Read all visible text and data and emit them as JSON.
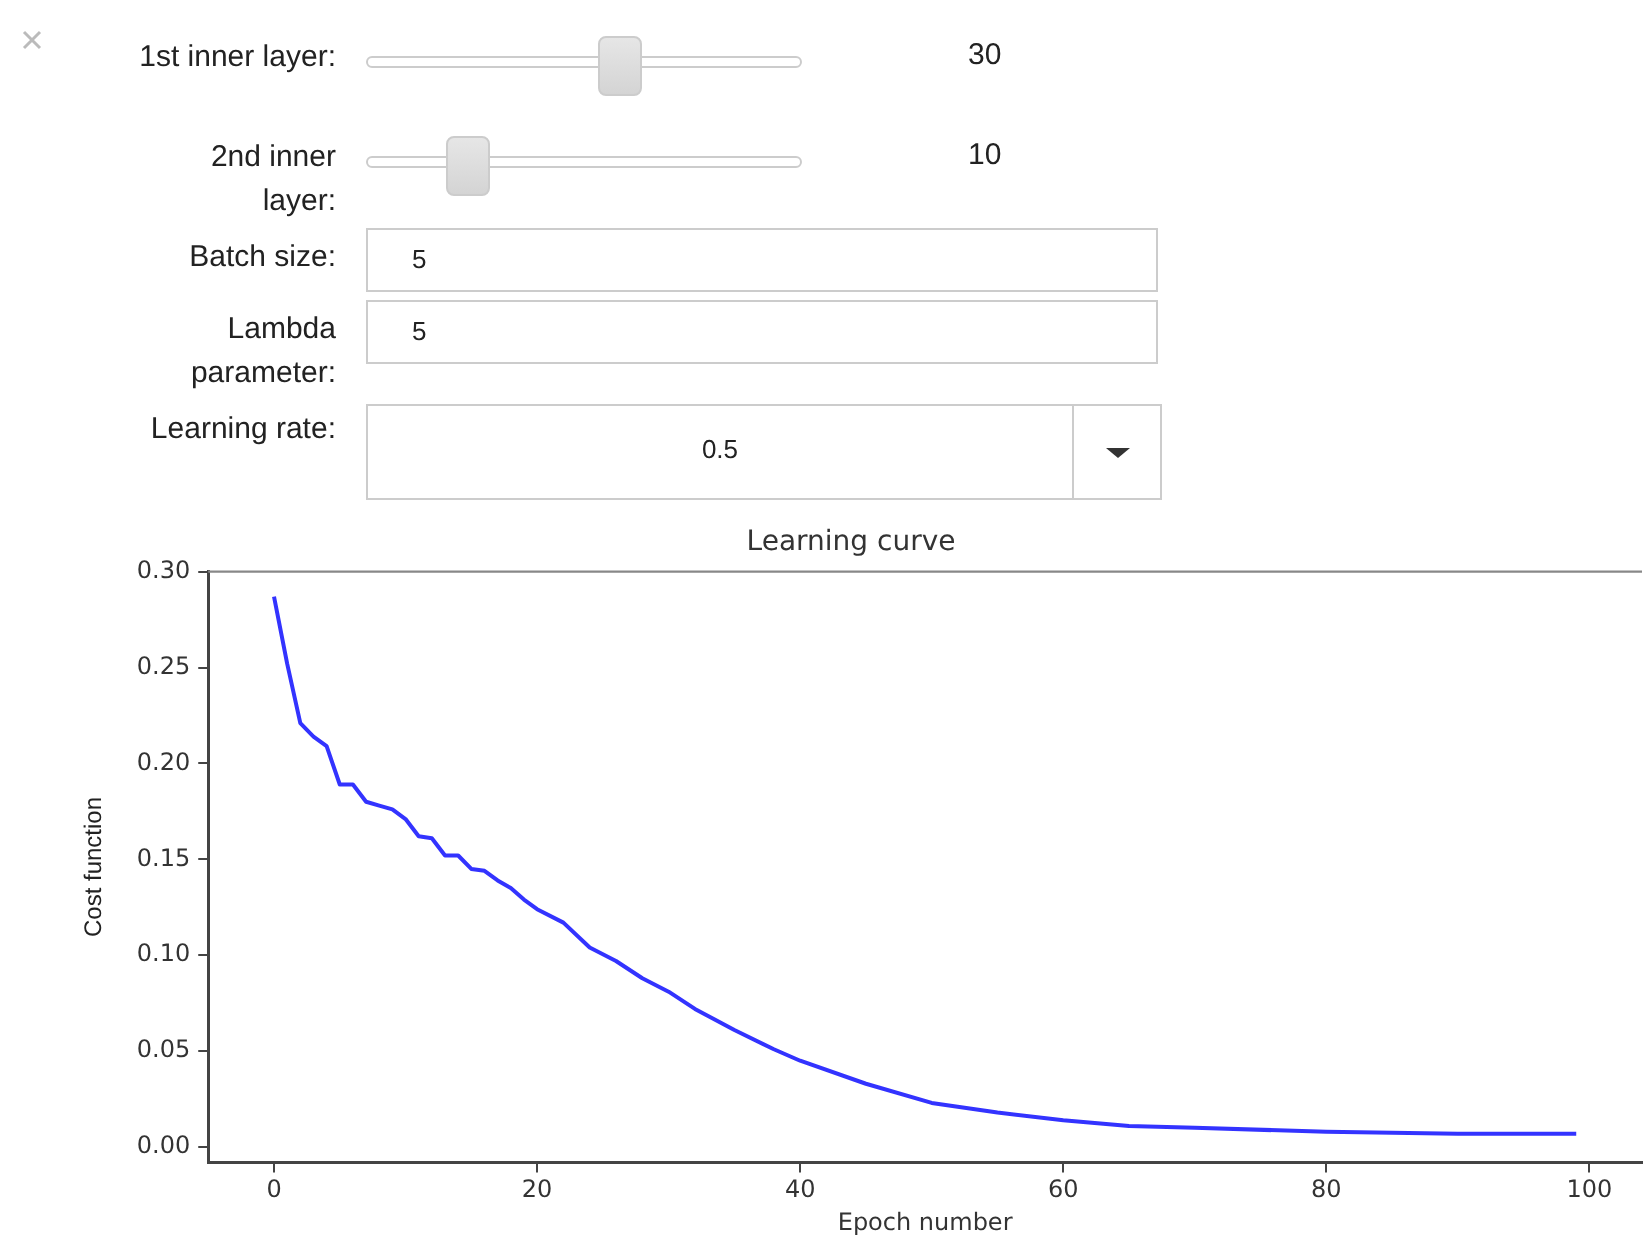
{
  "chart_data": [
    {
      "type": "other",
      "annotations": [
        "1st inner layer:",
        "30",
        "2nd inner layer:",
        "10",
        "Batch size:",
        "5",
        "Lambda parameter:",
        "5",
        "Learning rate:",
        "0.5"
      ]
    },
    {
      "type": "line",
      "title": "Learning curve",
      "xlabel": "Epoch number",
      "ylabel": "Cost function",
      "x": [
        0,
        1,
        2,
        3,
        4,
        5,
        6,
        7,
        8,
        9,
        10,
        11,
        12,
        13,
        14,
        15,
        16,
        17,
        18,
        19,
        20,
        22,
        24,
        26,
        28,
        30,
        32,
        35,
        38,
        40,
        45,
        50,
        55,
        60,
        65,
        70,
        80,
        90,
        99
      ],
      "series": [
        {
          "color": "#3333ff",
          "values": [
            0.287,
            0.252,
            0.221,
            0.214,
            0.209,
            0.189,
            0.189,
            0.18,
            0.178,
            0.176,
            0.171,
            0.162,
            0.161,
            0.152,
            0.152,
            0.145,
            0.144,
            0.139,
            0.135,
            0.129,
            0.124,
            0.117,
            0.104,
            0.097,
            0.088,
            0.081,
            0.072,
            0.061,
            0.051,
            0.045,
            0.033,
            0.023,
            0.018,
            0.014,
            0.011,
            0.01,
            0.008,
            0.007,
            0.007
          ]
        }
      ],
      "xlim": [
        -5,
        104
      ],
      "xticks": [
        0,
        20,
        40,
        60,
        80,
        100
      ],
      "ylim": [
        -0.008,
        0.3
      ],
      "yticks": [
        {
          "value": 0,
          "label": "0.00"
        },
        0.05,
        {
          "value": 0.1,
          "label": "0.10"
        },
        0.15,
        {
          "value": 0.2,
          "label": "0.20"
        },
        0.25,
        {
          "value": 0.3,
          "label": "0.30"
        }
      ],
      "grid": false,
      "legend": false,
      "marker": "none",
      "line_style": "solid"
    }
  ]
}
